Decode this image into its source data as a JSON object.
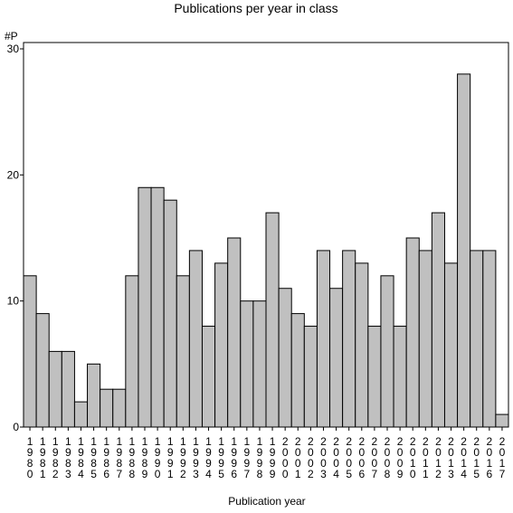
{
  "chart_data": {
    "type": "bar",
    "title": "Publications per year in class",
    "xlabel": "Publication year",
    "ylabel": "#P",
    "ylim": [
      0,
      30
    ],
    "yticks": [
      0,
      10,
      20,
      30
    ],
    "grid": false,
    "bar_color": "#c0c0c0",
    "bar_edge_color": "#000000",
    "categories": [
      "1980",
      "1981",
      "1982",
      "1983",
      "1984",
      "1985",
      "1986",
      "1987",
      "1988",
      "1989",
      "1990",
      "1991",
      "1992",
      "1993",
      "1994",
      "1995",
      "1996",
      "1997",
      "1998",
      "1999",
      "2000",
      "2001",
      "2002",
      "2003",
      "2004",
      "2005",
      "2006",
      "2007",
      "2008",
      "2009",
      "2010",
      "2011",
      "2012",
      "2013",
      "2014",
      "2015",
      "2016",
      "2017"
    ],
    "values": [
      12,
      9,
      6,
      6,
      2,
      5,
      3,
      3,
      12,
      19,
      19,
      18,
      12,
      14,
      8,
      13,
      15,
      10,
      10,
      17,
      11,
      9,
      8,
      14,
      11,
      14,
      13,
      8,
      12,
      8,
      15,
      14,
      17,
      13,
      28,
      14,
      14,
      1
    ]
  }
}
